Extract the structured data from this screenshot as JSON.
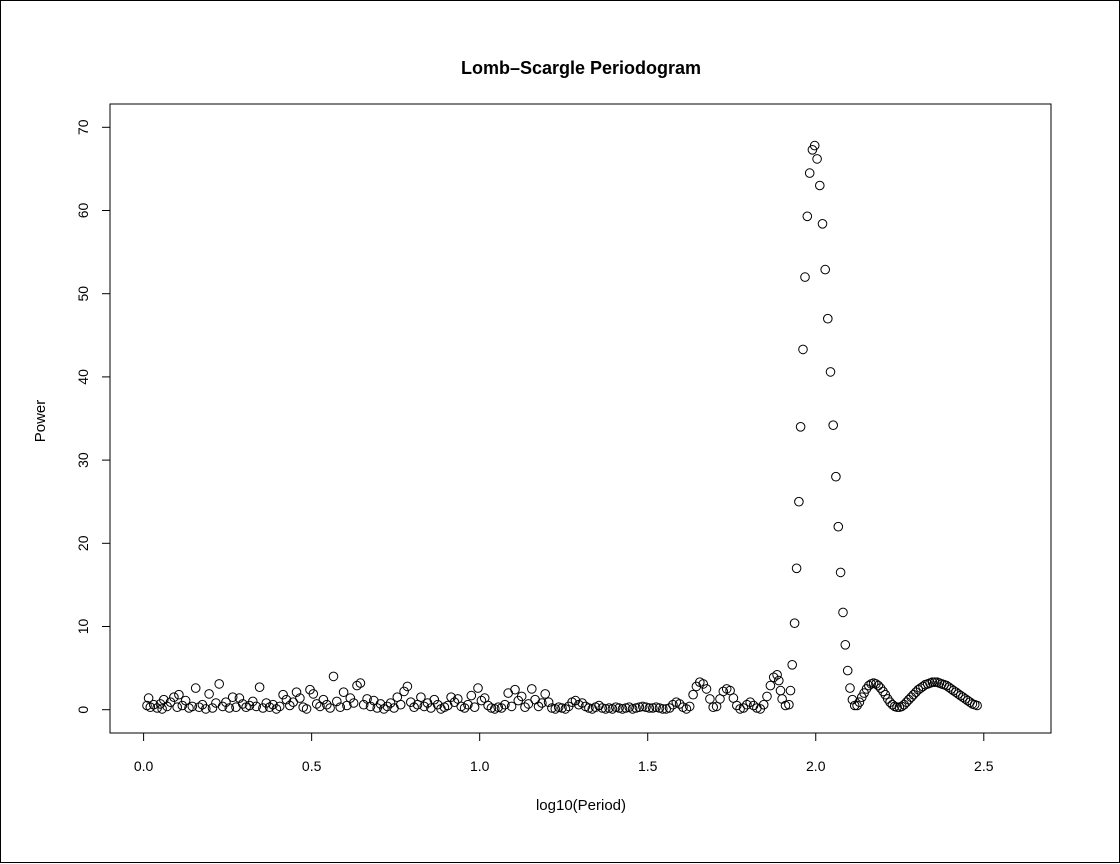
{
  "chart_data": {
    "type": "scatter",
    "title": "Lomb–Scargle Periodogram",
    "xlabel": "log10(Period)",
    "ylabel": "Power",
    "xlim": [
      -0.1,
      2.7
    ],
    "ylim": [
      -2.8,
      72.8
    ],
    "xticks": [
      0.0,
      0.5,
      1.0,
      1.5,
      2.0,
      2.5
    ],
    "xtick_labels": [
      "0.0",
      "0.5",
      "1.0",
      "1.5",
      "2.0",
      "2.5"
    ],
    "yticks": [
      0,
      10,
      20,
      30,
      40,
      50,
      60,
      70
    ],
    "ytick_labels": [
      "0",
      "10",
      "20",
      "30",
      "40",
      "50",
      "60",
      "70"
    ],
    "grid": false,
    "marker": "open-circle",
    "marker_color": "#000000",
    "series": [
      {
        "points": [
          [
            0.01,
            0.5
          ],
          [
            0.015,
            1.4
          ],
          [
            0.02,
            0.3
          ],
          [
            0.03,
            0.6
          ],
          [
            0.04,
            0.2
          ],
          [
            0.05,
            0.7
          ],
          [
            0.055,
            0.1
          ],
          [
            0.06,
            1.2
          ],
          [
            0.07,
            0.4
          ],
          [
            0.08,
            0.9
          ],
          [
            0.09,
            1.5
          ],
          [
            0.1,
            0.3
          ],
          [
            0.105,
            1.8
          ],
          [
            0.115,
            0.5
          ],
          [
            0.125,
            1.1
          ],
          [
            0.135,
            0.2
          ],
          [
            0.145,
            0.4
          ],
          [
            0.155,
            2.6
          ],
          [
            0.165,
            0.3
          ],
          [
            0.175,
            0.6
          ],
          [
            0.185,
            0.1
          ],
          [
            0.195,
            1.9
          ],
          [
            0.205,
            0.2
          ],
          [
            0.215,
            0.8
          ],
          [
            0.225,
            3.1
          ],
          [
            0.235,
            0.4
          ],
          [
            0.245,
            0.9
          ],
          [
            0.255,
            0.2
          ],
          [
            0.265,
            1.5
          ],
          [
            0.275,
            0.3
          ],
          [
            0.285,
            1.4
          ],
          [
            0.295,
            0.7
          ],
          [
            0.305,
            0.3
          ],
          [
            0.315,
            0.5
          ],
          [
            0.325,
            1.0
          ],
          [
            0.335,
            0.4
          ],
          [
            0.345,
            2.7
          ],
          [
            0.355,
            0.2
          ],
          [
            0.365,
            0.8
          ],
          [
            0.375,
            0.3
          ],
          [
            0.385,
            0.6
          ],
          [
            0.395,
            0.1
          ],
          [
            0.405,
            0.4
          ],
          [
            0.415,
            1.8
          ],
          [
            0.425,
            1.2
          ],
          [
            0.435,
            0.5
          ],
          [
            0.445,
            0.9
          ],
          [
            0.455,
            2.1
          ],
          [
            0.465,
            1.4
          ],
          [
            0.475,
            0.3
          ],
          [
            0.485,
            0.1
          ],
          [
            0.495,
            2.4
          ],
          [
            0.505,
            1.9
          ],
          [
            0.515,
            0.7
          ],
          [
            0.525,
            0.4
          ],
          [
            0.535,
            1.2
          ],
          [
            0.545,
            0.6
          ],
          [
            0.555,
            0.2
          ],
          [
            0.565,
            4.0
          ],
          [
            0.575,
            1.0
          ],
          [
            0.585,
            0.3
          ],
          [
            0.595,
            2.1
          ],
          [
            0.605,
            0.5
          ],
          [
            0.615,
            1.4
          ],
          [
            0.625,
            0.8
          ],
          [
            0.635,
            2.9
          ],
          [
            0.645,
            3.2
          ],
          [
            0.655,
            0.6
          ],
          [
            0.665,
            1.3
          ],
          [
            0.675,
            0.4
          ],
          [
            0.685,
            1.1
          ],
          [
            0.695,
            0.2
          ],
          [
            0.705,
            0.7
          ],
          [
            0.715,
            0.1
          ],
          [
            0.725,
            0.4
          ],
          [
            0.735,
            0.8
          ],
          [
            0.745,
            0.2
          ],
          [
            0.755,
            1.5
          ],
          [
            0.765,
            0.6
          ],
          [
            0.775,
            2.2
          ],
          [
            0.785,
            2.8
          ],
          [
            0.795,
            0.9
          ],
          [
            0.805,
            0.3
          ],
          [
            0.815,
            0.6
          ],
          [
            0.825,
            1.5
          ],
          [
            0.835,
            0.4
          ],
          [
            0.845,
            0.8
          ],
          [
            0.855,
            0.2
          ],
          [
            0.865,
            1.2
          ],
          [
            0.875,
            0.6
          ],
          [
            0.885,
            0.1
          ],
          [
            0.895,
            0.3
          ],
          [
            0.905,
            0.5
          ],
          [
            0.915,
            1.5
          ],
          [
            0.925,
            0.9
          ],
          [
            0.935,
            1.3
          ],
          [
            0.945,
            0.4
          ],
          [
            0.955,
            0.2
          ],
          [
            0.965,
            0.6
          ],
          [
            0.975,
            1.7
          ],
          [
            0.985,
            0.3
          ],
          [
            0.995,
            2.6
          ],
          [
            1.005,
            1.1
          ],
          [
            1.015,
            1.4
          ],
          [
            1.025,
            0.5
          ],
          [
            1.035,
            0.2
          ],
          [
            1.045,
            0.1
          ],
          [
            1.055,
            0.3
          ],
          [
            1.065,
            0.2
          ],
          [
            1.075,
            0.6
          ],
          [
            1.085,
            2.0
          ],
          [
            1.095,
            0.4
          ],
          [
            1.105,
            2.4
          ],
          [
            1.115,
            1.1
          ],
          [
            1.125,
            1.6
          ],
          [
            1.135,
            0.3
          ],
          [
            1.145,
            0.7
          ],
          [
            1.155,
            2.5
          ],
          [
            1.165,
            1.2
          ],
          [
            1.175,
            0.4
          ],
          [
            1.185,
            0.8
          ],
          [
            1.195,
            1.9
          ],
          [
            1.205,
            0.9
          ],
          [
            1.215,
            0.2
          ],
          [
            1.225,
            0.1
          ],
          [
            1.235,
            0.3
          ],
          [
            1.245,
            0.2
          ],
          [
            1.255,
            0.1
          ],
          [
            1.265,
            0.4
          ],
          [
            1.275,
            0.9
          ],
          [
            1.285,
            1.1
          ],
          [
            1.295,
            0.6
          ],
          [
            1.305,
            0.8
          ],
          [
            1.315,
            0.4
          ],
          [
            1.325,
            0.2
          ],
          [
            1.335,
            0.1
          ],
          [
            1.345,
            0.3
          ],
          [
            1.355,
            0.5
          ],
          [
            1.365,
            0.2
          ],
          [
            1.375,
            0.1
          ],
          [
            1.385,
            0.2
          ],
          [
            1.395,
            0.1
          ],
          [
            1.405,
            0.3
          ],
          [
            1.415,
            0.2
          ],
          [
            1.425,
            0.1
          ],
          [
            1.435,
            0.2
          ],
          [
            1.445,
            0.3
          ],
          [
            1.455,
            0.1
          ],
          [
            1.465,
            0.2
          ],
          [
            1.475,
            0.3
          ],
          [
            1.485,
            0.4
          ],
          [
            1.495,
            0.3
          ],
          [
            1.505,
            0.2
          ],
          [
            1.515,
            0.2
          ],
          [
            1.525,
            0.3
          ],
          [
            1.535,
            0.2
          ],
          [
            1.545,
            0.1
          ],
          [
            1.555,
            0.1
          ],
          [
            1.565,
            0.2
          ],
          [
            1.575,
            0.6
          ],
          [
            1.585,
            0.9
          ],
          [
            1.595,
            0.7
          ],
          [
            1.605,
            0.3
          ],
          [
            1.615,
            0.1
          ],
          [
            1.625,
            0.4
          ],
          [
            1.635,
            1.8
          ],
          [
            1.645,
            2.8
          ],
          [
            1.655,
            3.3
          ],
          [
            1.665,
            3.1
          ],
          [
            1.675,
            2.5
          ],
          [
            1.685,
            1.3
          ],
          [
            1.695,
            0.3
          ],
          [
            1.705,
            0.4
          ],
          [
            1.715,
            1.3
          ],
          [
            1.725,
            2.2
          ],
          [
            1.735,
            2.5
          ],
          [
            1.745,
            2.3
          ],
          [
            1.755,
            1.4
          ],
          [
            1.765,
            0.5
          ],
          [
            1.775,
            0.1
          ],
          [
            1.785,
            0.2
          ],
          [
            1.795,
            0.6
          ],
          [
            1.805,
            0.9
          ],
          [
            1.815,
            0.5
          ],
          [
            1.825,
            0.2
          ],
          [
            1.835,
            0.1
          ],
          [
            1.845,
            0.6
          ],
          [
            1.855,
            1.6
          ],
          [
            1.865,
            2.9
          ],
          [
            1.875,
            3.9
          ],
          [
            1.885,
            4.2
          ],
          [
            1.89,
            3.5
          ],
          [
            1.895,
            2.3
          ],
          [
            1.9,
            1.3
          ],
          [
            1.91,
            0.5
          ],
          [
            1.92,
            0.6
          ],
          [
            1.925,
            2.3
          ],
          [
            1.93,
            5.4
          ],
          [
            1.937,
            10.4
          ],
          [
            1.943,
            17.0
          ],
          [
            1.95,
            25.0
          ],
          [
            1.955,
            34.0
          ],
          [
            1.962,
            43.3
          ],
          [
            1.968,
            52.0
          ],
          [
            1.975,
            59.3
          ],
          [
            1.982,
            64.5
          ],
          [
            1.99,
            67.3
          ],
          [
            1.997,
            67.8
          ],
          [
            2.004,
            66.2
          ],
          [
            2.012,
            63.0
          ],
          [
            2.02,
            58.4
          ],
          [
            2.028,
            52.9
          ],
          [
            2.036,
            47.0
          ],
          [
            2.044,
            40.6
          ],
          [
            2.052,
            34.2
          ],
          [
            2.06,
            28.0
          ],
          [
            2.067,
            22.0
          ],
          [
            2.074,
            16.5
          ],
          [
            2.081,
            11.7
          ],
          [
            2.088,
            7.8
          ],
          [
            2.095,
            4.7
          ],
          [
            2.102,
            2.6
          ],
          [
            2.109,
            1.2
          ],
          [
            2.116,
            0.5
          ],
          [
            2.123,
            0.5
          ],
          [
            2.13,
            0.9
          ],
          [
            2.137,
            1.5
          ],
          [
            2.144,
            2.0
          ],
          [
            2.151,
            2.5
          ],
          [
            2.158,
            2.9
          ],
          [
            2.165,
            3.1
          ],
          [
            2.172,
            3.2
          ],
          [
            2.179,
            3.1
          ],
          [
            2.186,
            2.9
          ],
          [
            2.193,
            2.6
          ],
          [
            2.2,
            2.2
          ],
          [
            2.207,
            1.8
          ],
          [
            2.214,
            1.3
          ],
          [
            2.221,
            0.9
          ],
          [
            2.228,
            0.6
          ],
          [
            2.235,
            0.4
          ],
          [
            2.242,
            0.3
          ],
          [
            2.249,
            0.3
          ],
          [
            2.256,
            0.4
          ],
          [
            2.263,
            0.6
          ],
          [
            2.27,
            0.9
          ],
          [
            2.277,
            1.2
          ],
          [
            2.284,
            1.5
          ],
          [
            2.291,
            1.8
          ],
          [
            2.298,
            2.1
          ],
          [
            2.305,
            2.4
          ],
          [
            2.312,
            2.6
          ],
          [
            2.319,
            2.8
          ],
          [
            2.326,
            3.0
          ],
          [
            2.333,
            3.1
          ],
          [
            2.34,
            3.2
          ],
          [
            2.347,
            3.3
          ],
          [
            2.354,
            3.3
          ],
          [
            2.361,
            3.3
          ],
          [
            2.368,
            3.2
          ],
          [
            2.375,
            3.1
          ],
          [
            2.382,
            3.0
          ],
          [
            2.389,
            2.9
          ],
          [
            2.396,
            2.7
          ],
          [
            2.403,
            2.5
          ],
          [
            2.41,
            2.3
          ],
          [
            2.417,
            2.1
          ],
          [
            2.424,
            1.9
          ],
          [
            2.431,
            1.7
          ],
          [
            2.438,
            1.5
          ],
          [
            2.445,
            1.3
          ],
          [
            2.452,
            1.1
          ],
          [
            2.459,
            0.9
          ],
          [
            2.466,
            0.7
          ],
          [
            2.473,
            0.6
          ],
          [
            2.48,
            0.5
          ]
        ]
      }
    ]
  }
}
